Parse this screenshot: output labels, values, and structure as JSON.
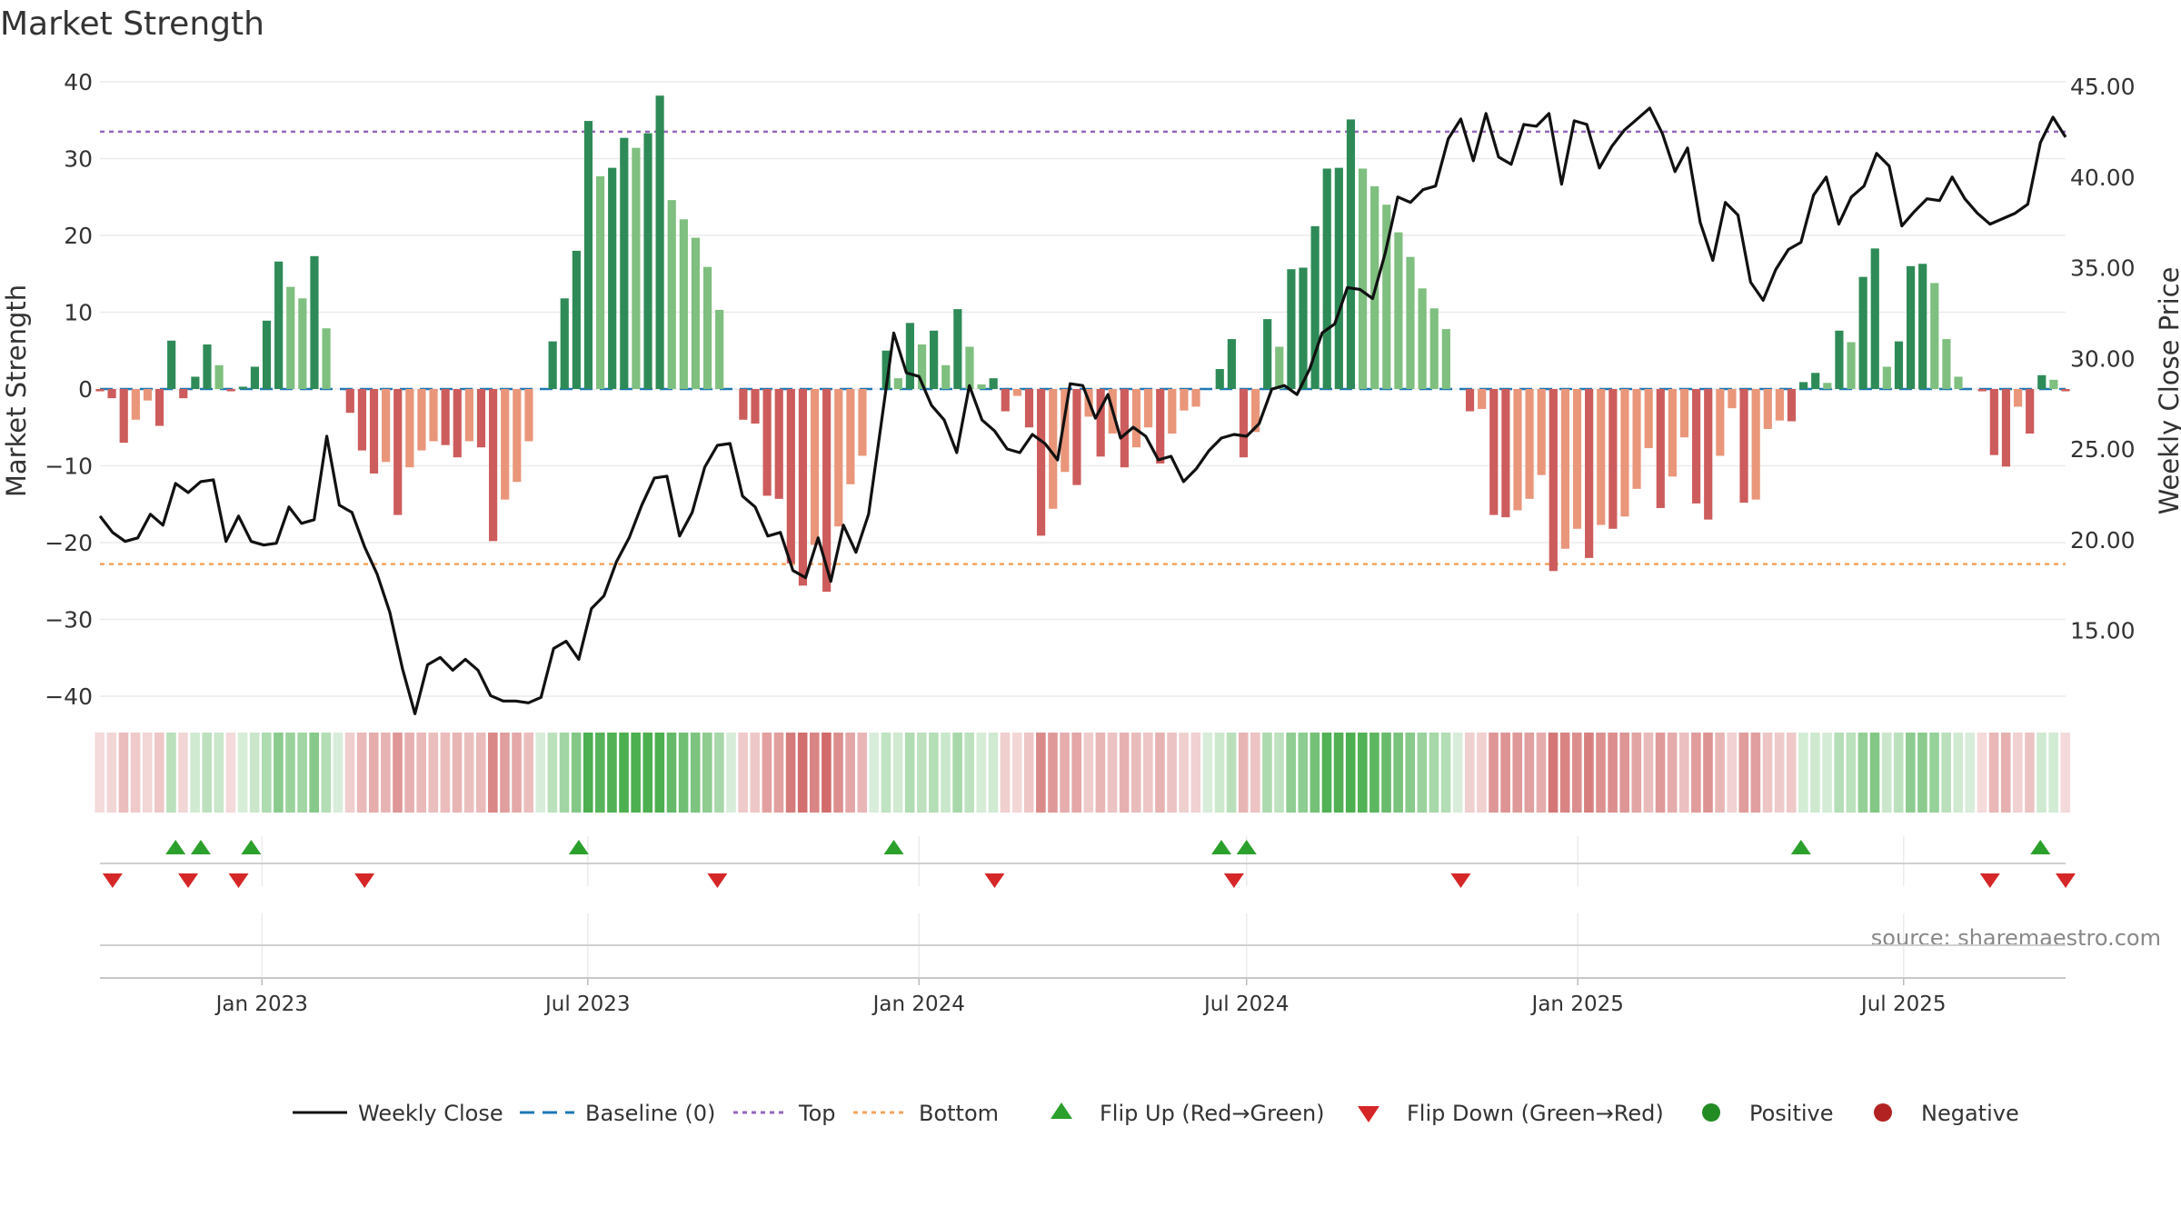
{
  "title": "Market Strength",
  "source_text": "source: sharemaestro.com",
  "colors": {
    "positive_strong": "#2e8b57",
    "positive_weak": "#7fbf7f",
    "negative_strong": "#cd5c5c",
    "negative_weak": "#e9967a",
    "close_line": "#111111",
    "baseline": "#1f77b4",
    "top": "#9467bd",
    "bottom": "#f4a460",
    "flip_up": "#2ca02c",
    "flip_down": "#d62728",
    "positive_dot": "#228b22",
    "negative_dot": "#b22222"
  },
  "legend": [
    {
      "label": "Weekly Close",
      "kind": "solid-line"
    },
    {
      "label": "Baseline (0)",
      "kind": "dash-line"
    },
    {
      "label": "Top",
      "kind": "dot-line-purple"
    },
    {
      "label": "Bottom",
      "kind": "dot-line-orange"
    },
    {
      "label": "Flip Up (Red→Green)",
      "kind": "triangle-up"
    },
    {
      "label": "Flip Down (Green→Red)",
      "kind": "triangle-down"
    },
    {
      "label": "Positive",
      "kind": "dot-green"
    },
    {
      "label": "Negative",
      "kind": "dot-red"
    }
  ],
  "chart_data": {
    "type": "bar",
    "title": "Market Strength",
    "ylabel": "Market Strength",
    "y2label": "Weekly Close Price",
    "ylim": [
      -40,
      40
    ],
    "y2lim": [
      10,
      46
    ],
    "yticks": [
      "40",
      "30",
      "20",
      "10",
      "0",
      "−10",
      "−20",
      "−30",
      "−40"
    ],
    "y2ticks": [
      "45.00",
      "40.00",
      "35.00",
      "30.00",
      "25.00",
      "20.00",
      "15.00"
    ],
    "x_start": "2022-10-03",
    "x_end": "2025-09-29",
    "xticks": [
      {
        "date": "2023-01-01",
        "label": "Jan 2023"
      },
      {
        "date": "2023-07-01",
        "label": "Jul 2023"
      },
      {
        "date": "2024-01-01",
        "label": "Jan 2024"
      },
      {
        "date": "2024-07-01",
        "label": "Jul 2024"
      },
      {
        "date": "2025-01-01",
        "label": "Jan 2025"
      },
      {
        "date": "2025-07-01",
        "label": "Jul 2025"
      }
    ],
    "top_level": 33.5,
    "bottom_level": -22.8,
    "baseline": 0,
    "strength": [
      -0.3,
      -1.2,
      -7,
      -4,
      -1.5,
      -4.8,
      6.3,
      -1.2,
      1.6,
      5.8,
      3.1,
      -0.3,
      0.3,
      2.9,
      8.9,
      16.6,
      13.3,
      11.8,
      17.3,
      7.9,
      0,
      -3.1,
      -8,
      -11,
      -9.5,
      -16.4,
      -10.2,
      -8,
      -6.8,
      -7.3,
      -8.9,
      -6.8,
      -7.6,
      -19.8,
      -14.4,
      -12.1,
      -6.8,
      0,
      6.2,
      11.8,
      18,
      34.9,
      27.7,
      28.8,
      32.7,
      31.4,
      33.3,
      38.2,
      24.6,
      22.1,
      19.7,
      15.9,
      10.3,
      0,
      -4,
      -4.5,
      -13.9,
      -14.3,
      -22.7,
      -25.6,
      -20.3,
      -26.4,
      -17.9,
      -12.4,
      -8.7,
      0,
      5,
      1.4,
      8.6,
      5.8,
      7.6,
      3.1,
      10.4,
      5.5,
      0.6,
      1.4,
      -2.9,
      -0.9,
      -5,
      -19.1,
      -15.6,
      -10.8,
      -12.5,
      -3.6,
      -8.8,
      -5.8,
      -10.2,
      -7.6,
      -5,
      -9.7,
      -5.8,
      -2.8,
      -2.3,
      0,
      2.6,
      6.5,
      -8.9,
      -5.6,
      9.1,
      5.5,
      15.6,
      15.8,
      21.2,
      28.7,
      28.8,
      35.1,
      28.7,
      26.4,
      24,
      20.4,
      17.2,
      13.1,
      10.5,
      7.8,
      0,
      -2.9,
      -2.6,
      -16.4,
      -16.7,
      -15.8,
      -14.3,
      -11.2,
      -23.7,
      -20.8,
      -18.2,
      -22,
      -17.7,
      -18.2,
      -16.6,
      -13,
      -7.7,
      -15.5,
      -11.4,
      -6.3,
      -14.9,
      -17,
      -8.7,
      -2.5,
      -14.8,
      -14.4,
      -5.2,
      -4.1,
      -4.2,
      0.9,
      2.1,
      0.8,
      7.6,
      6.1,
      14.6,
      18.3,
      2.9,
      6.2,
      16,
      16.3,
      13.8,
      6.5,
      1.6,
      0,
      -0.3,
      -8.6,
      -10.1,
      -2.3,
      -5.8,
      1.8,
      1.2,
      -0.3
    ],
    "weekly_close": [
      21.3,
      20.4,
      19.9,
      20.1,
      21.4,
      20.8,
      23.1,
      22.6,
      23.2,
      23.3,
      19.9,
      21.3,
      19.9,
      19.7,
      19.8,
      21.8,
      20.9,
      21.1,
      25.7,
      21.9,
      21.5,
      19.6,
      18.1,
      16,
      12.9,
      10.4,
      13.1,
      13.5,
      12.8,
      13.4,
      12.8,
      11.4,
      11.1,
      11.1,
      11,
      11.3,
      14,
      14.4,
      13.4,
      16.2,
      16.9,
      18.8,
      20.1,
      21.9,
      23.4,
      23.5,
      20.2,
      21.5,
      24,
      25.2,
      25.3,
      22.4,
      21.8,
      20.2,
      20.4,
      18.3,
      17.9,
      20.1,
      17.7,
      20.8,
      19.3,
      21.4,
      26.4,
      31.4,
      29.2,
      29,
      27.4,
      26.6,
      24.8,
      28.5,
      26.6,
      26,
      25,
      24.8,
      25.8,
      25.3,
      24.4,
      28.6,
      28.5,
      26.7,
      28,
      25.6,
      26.2,
      25.7,
      24.4,
      24.6,
      23.2,
      23.9,
      24.9,
      25.6,
      25.8,
      25.7,
      26.4,
      28.3,
      28.5,
      28,
      29.4,
      31.4,
      31.9,
      33.9,
      33.8,
      33.3,
      35.8,
      38.9,
      38.6,
      39.3,
      39.5,
      42.1,
      43.2,
      40.9,
      43.5,
      41.1,
      40.7,
      42.9,
      42.8,
      43.5,
      39.6,
      43.1,
      42.9,
      40.5,
      41.7,
      42.6,
      43.2,
      43.8,
      42.4,
      40.3,
      41.6,
      37.5,
      35.4,
      38.6,
      37.9,
      34.2,
      33.2,
      34.9,
      36,
      36.4,
      39,
      40,
      37.4,
      38.9,
      39.5,
      41.3,
      40.6,
      37.3,
      38.1,
      38.8,
      38.7,
      40,
      38.8,
      38,
      37.4,
      37.7,
      38,
      38.5,
      41.9,
      43.3,
      42.2
    ]
  },
  "band_cells": [
    -0.3,
    -1.2,
    -7,
    -4,
    -1.5,
    -4.8,
    6.3,
    -1.2,
    1.6,
    5.8,
    3.1,
    -0.3,
    0.3,
    2.9,
    8.9,
    16.6,
    13.3,
    11.8,
    17.3,
    7.9,
    0,
    -3.1,
    -8,
    -11,
    -9.5,
    -16.4,
    -10.2,
    -8,
    -6.8,
    -7.3,
    -8.9,
    -6.8,
    -7.6,
    -19.8,
    -14.4,
    -12.1,
    -6.8,
    0,
    6.2,
    11.8,
    18,
    34.9,
    27.7,
    28.8,
    32.7,
    31.4,
    33.3,
    38.2,
    24.6,
    22.1,
    19.7,
    15.9,
    10.3,
    0,
    -4,
    -4.5,
    -13.9,
    -14.3,
    -22.7,
    -25.6,
    -20.3,
    -26.4,
    -17.9,
    -12.4,
    -8.7,
    0,
    5,
    1.4,
    8.6,
    5.8,
    7.6,
    3.1,
    10.4,
    5.5,
    0.6,
    1.4,
    -2.9,
    -0.9,
    -5,
    -19.1,
    -15.6,
    -10.8,
    -12.5,
    -3.6,
    -8.8,
    -5.8,
    -10.2,
    -7.6,
    -5,
    -9.7,
    -5.8,
    -2.8,
    -2.3,
    0,
    2.6,
    6.5,
    -8.9,
    -5.6,
    9.1,
    5.5,
    15.6,
    15.8,
    21.2,
    28.7,
    28.8,
    35.1,
    28.7,
    26.4,
    24,
    20.4,
    17.2,
    13.1,
    10.5,
    7.8,
    0,
    -2.9,
    -2.6,
    -16.4,
    -16.7,
    -15.8,
    -14.3,
    -11.2,
    -23.7,
    -20.8,
    -18.2,
    -22,
    -17.7,
    -18.2,
    -16.6,
    -13,
    -7.7,
    -15.5,
    -11.4,
    -6.3,
    -14.9,
    -17,
    -8.7,
    -2.5,
    -14.8,
    -14.4,
    -5.2,
    -4.1,
    -4.2,
    0.9,
    2.1,
    0.8,
    7.6,
    6.1,
    14.6,
    18.3,
    2.9,
    6.2,
    16,
    16.3,
    13.8,
    6.5,
    1.6,
    0,
    -0.3,
    -8.6,
    -10.1,
    -2.3,
    -5.8,
    1.8,
    1.2,
    -0.3
  ],
  "flips_up": [
    "2022-11-14",
    "2022-11-28",
    "2022-12-26",
    "2023-06-26",
    "2023-12-18",
    "2024-06-17",
    "2024-07-01",
    "2025-05-05",
    "2025-09-15"
  ],
  "flips_down": [
    "2022-10-10",
    "2022-11-21",
    "2022-12-19",
    "2023-02-27",
    "2023-09-11",
    "2024-02-12",
    "2024-06-24",
    "2024-10-28",
    "2025-08-18",
    "2025-09-29"
  ]
}
